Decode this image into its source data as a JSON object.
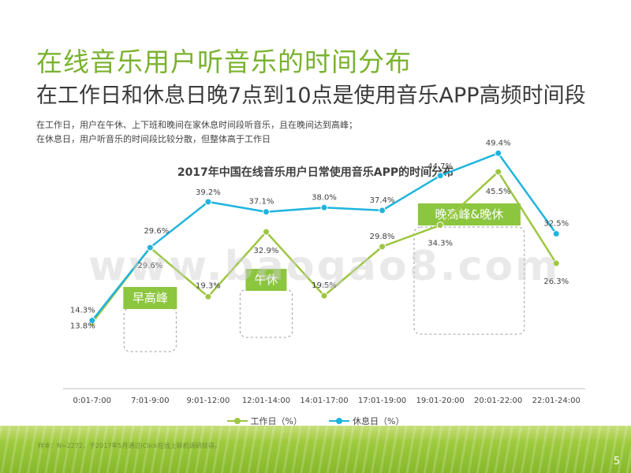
{
  "header": {
    "title": "在线音乐用户听音乐的时间分布",
    "subtitle": "在工作日和休息日晚7点到10点是使用音乐APP高频时间段",
    "desc_line1": "在工作日，用户在午休、上下班和晚间在家休息时间段听音乐，且在晚间达到高峰；",
    "desc_line2": "在休息日，用户听音乐的时间段比较分散，但整体高于工作日"
  },
  "watermark": "www.baogao8.com",
  "footer": {
    "source": "样本：N=2272，于2017年5月通过iClick在线上联机调研获得。",
    "page_number": "5"
  },
  "colors": {
    "workday": "#9dc641",
    "restday": "#1fb4dd",
    "accent_green": "#8cc63f",
    "box_border": "#9c9c9c"
  },
  "chart_data": {
    "type": "line",
    "title": "2017年中国在线音乐用户日常使用音乐APP的时间分布",
    "categories": [
      "0:01-7:00",
      "7:01-9:00",
      "9:01-12:00",
      "12:01-14:00",
      "14:01-17:00",
      "17:01-19:00",
      "19:01-20:00",
      "20:01-22:00",
      "22:01-24:00"
    ],
    "series": [
      {
        "name": "工作日（%）",
        "values": [
          13.8,
          29.6,
          19.3,
          32.9,
          19.5,
          29.8,
          34.3,
          45.5,
          26.3
        ]
      },
      {
        "name": "休息日（%）",
        "values": [
          14.3,
          29.6,
          39.2,
          37.1,
          38.0,
          37.4,
          44.7,
          49.4,
          32.5
        ]
      }
    ],
    "ylim": [
      0,
      60
    ],
    "xlabel": "",
    "ylabel": "",
    "grid": false,
    "legend": "bottom",
    "annotations": [
      {
        "label": "早高峰",
        "start": 1,
        "end": 1
      },
      {
        "label": "午休",
        "start": 3,
        "end": 3
      },
      {
        "label": "晚高峰&晚休",
        "start": 6,
        "end": 7
      }
    ]
  }
}
